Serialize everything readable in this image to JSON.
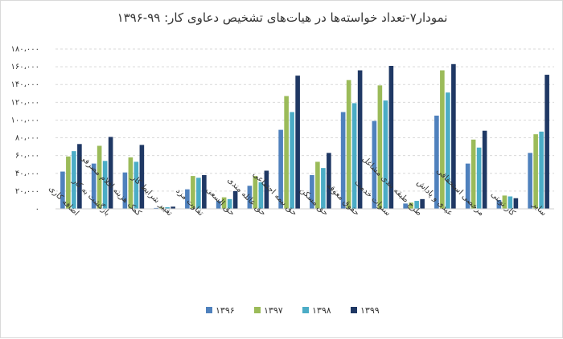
{
  "chart_data": {
    "type": "bar",
    "title": "نمودار۷-تعداد خواسته‌ها در هیات‌های تشخیص دعاوی کار: ۹۹-۱۳۹۶",
    "xlabel": "",
    "ylabel": "",
    "ylim": [
      0,
      180000
    ],
    "y_ticks": [
      0,
      20000,
      40000,
      60000,
      80000,
      100000,
      120000,
      140000,
      160000,
      180000
    ],
    "y_tick_labels": [
      "۰",
      "۲۰،۰۰۰",
      "۴۰،۰۰۰",
      "۶۰،۰۰۰",
      "۸۰،۰۰۰",
      "۱۰۰،۰۰۰",
      "۱۲۰،۰۰۰",
      "۱۴۰،۰۰۰",
      "۱۶۰،۰۰۰",
      "۱۸۰،۰۰۰"
    ],
    "grid": "horizontal dashed",
    "legend_position": "bottom",
    "categories": [
      "اضافه کاری",
      "بازگشت به کار",
      "کمک هزینه اقلام مصرفی",
      "تغییر شرایط کار",
      "تفاوت مزد",
      "حق السعی",
      "حق عائله مندی",
      "حق بیمه اجتماعی",
      "حق مسکن",
      "حقوق معوقه",
      "سنوات خدمت",
      "طرح طبقه بندی مشاغل",
      "عیدی و پاداش",
      "مرخصی استحقاقی",
      "کار نوبتی",
      "سایر"
    ],
    "series": [
      {
        "name": "۱۳۹۶",
        "color": "#4f81bd",
        "values": [
          42000,
          51000,
          41000,
          1000,
          22000,
          9000,
          26000,
          89000,
          38000,
          109000,
          99000,
          6000,
          105000,
          51000,
          10000,
          63000
        ]
      },
      {
        "name": "۱۳۹۷",
        "color": "#9bbb59",
        "values": [
          59000,
          71000,
          58000,
          1500,
          37000,
          13000,
          37000,
          127000,
          53000,
          145000,
          139000,
          7000,
          156000,
          78000,
          15000,
          84000
        ]
      },
      {
        "name": "۱۳۹۸",
        "color": "#4bacc6",
        "values": [
          65000,
          54000,
          53000,
          1800,
          35000,
          11000,
          30000,
          109000,
          46000,
          119000,
          122000,
          9000,
          131000,
          69000,
          14000,
          87000
        ]
      },
      {
        "name": "۱۳۹۹",
        "color": "#1f3864",
        "values": [
          73000,
          81000,
          72000,
          2500,
          38000,
          20000,
          43000,
          150000,
          63000,
          156000,
          161000,
          11000,
          163000,
          88000,
          12000,
          151000
        ]
      }
    ]
  }
}
